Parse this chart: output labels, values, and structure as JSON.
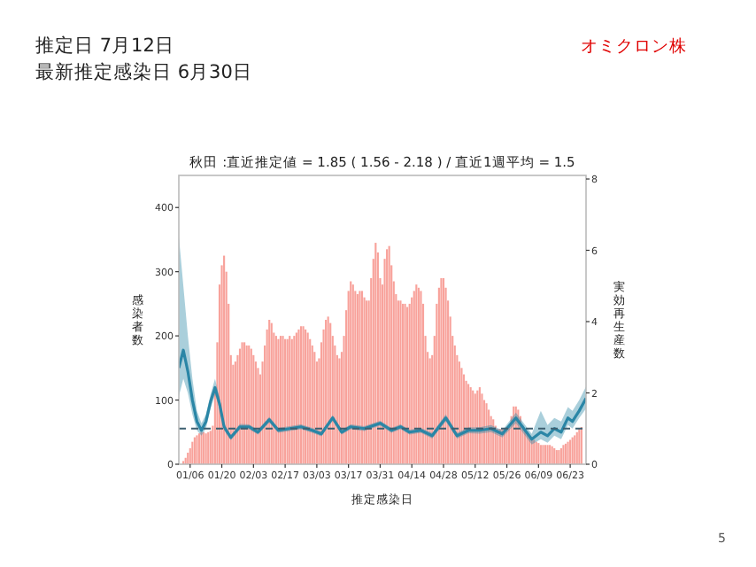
{
  "chart_data": {
    "type": "bar",
    "title": "秋田 :直近推定値 = 1.85 ( 1.56 - 2.18 ) / 直近1週平均 = 1.5",
    "xlabel": "推定感染日",
    "ylabel": "感染者数",
    "y2label": "実効再生産数",
    "annotations": [
      "推定日  7月12日",
      "最新推定感染日  6月30日",
      "オミクロン株",
      "5"
    ],
    "xlim": [
      "--01-01",
      "--06-30"
    ],
    "xticks": [
      {
        "value": "--01-06",
        "label": "01/06"
      },
      {
        "value": "--01-20",
        "label": "01/20"
      },
      {
        "value": "--02-03",
        "label": "02/03"
      },
      {
        "value": "--02-17",
        "label": "02/17"
      },
      {
        "value": "--03-03",
        "label": "03/03"
      },
      {
        "value": "--03-17",
        "label": "03/17"
      },
      {
        "value": "--03-31",
        "label": "03/31"
      },
      {
        "value": "--04-14",
        "label": "04/14"
      },
      {
        "value": "--04-28",
        "label": "04/28"
      },
      {
        "value": "--05-12",
        "label": "05/12"
      },
      {
        "value": "--05-26",
        "label": "05/26"
      },
      {
        "value": "--06-09",
        "label": "06/09"
      },
      {
        "value": "--06-23",
        "label": "06/23"
      }
    ],
    "ylim": [
      0,
      450
    ],
    "yticks": [
      0,
      100,
      200,
      300,
      400
    ],
    "y2lim": [
      0,
      8.1
    ],
    "y2ticks": [
      0,
      2,
      4,
      6,
      8
    ],
    "grid": false,
    "ref_lines": [
      {
        "axis": "y2",
        "value": 1,
        "color": "#3d5f70",
        "line_style": "dashed"
      }
    ],
    "series": [
      {
        "color": "#f8a29b",
        "x": [
          "--01-03",
          "--01-04",
          "--01-05",
          "--01-06",
          "--01-07",
          "--01-08",
          "--01-09",
          "--01-10",
          "--01-11",
          "--01-12",
          "--01-13",
          "--01-14",
          "--01-15",
          "--01-16",
          "--01-17",
          "--01-18",
          "--01-19",
          "--01-20",
          "--01-21",
          "--01-22",
          "--01-23",
          "--01-24",
          "--01-25",
          "--01-26",
          "--01-27",
          "--01-28",
          "--01-29",
          "--01-30",
          "--01-31",
          "--02-01",
          "--02-02",
          "--02-03",
          "--02-04",
          "--02-05",
          "--02-06",
          "--02-07",
          "--02-08",
          "--02-09",
          "--02-10",
          "--02-11",
          "--02-12",
          "--02-13",
          "--02-14",
          "--02-15",
          "--02-16",
          "--02-17",
          "--02-18",
          "--02-19",
          "--02-20",
          "--02-21",
          "--02-22",
          "--02-23",
          "--02-24",
          "--02-25",
          "--02-26",
          "--02-27",
          "--02-28",
          "--03-01",
          "--03-02",
          "--03-03",
          "--03-04",
          "--03-05",
          "--03-06",
          "--03-07",
          "--03-08",
          "--03-09",
          "--03-10",
          "--03-11",
          "--03-12",
          "--03-13",
          "--03-14",
          "--03-15",
          "--03-16",
          "--03-17",
          "--03-18",
          "--03-19",
          "--03-20",
          "--03-21",
          "--03-22",
          "--03-23",
          "--03-24",
          "--03-25",
          "--03-26",
          "--03-27",
          "--03-28",
          "--03-29",
          "--03-30",
          "--03-31",
          "--04-01",
          "--04-02",
          "--04-03",
          "--04-04",
          "--04-05",
          "--04-06",
          "--04-07",
          "--04-08",
          "--04-09",
          "--04-10",
          "--04-11",
          "--04-12",
          "--04-13",
          "--04-14",
          "--04-15",
          "--04-16",
          "--04-17",
          "--04-18",
          "--04-19",
          "--04-20",
          "--04-21",
          "--04-22",
          "--04-23",
          "--04-24",
          "--04-25",
          "--04-26",
          "--04-27",
          "--04-28",
          "--04-29",
          "--04-30",
          "--05-01",
          "--05-02",
          "--05-03",
          "--05-04",
          "--05-05",
          "--05-06",
          "--05-07",
          "--05-08",
          "--05-09",
          "--05-10",
          "--05-11",
          "--05-12",
          "--05-13",
          "--05-14",
          "--05-15",
          "--05-16",
          "--05-17",
          "--05-18",
          "--05-19",
          "--05-20",
          "--05-21",
          "--05-22",
          "--05-23",
          "--05-24",
          "--05-25",
          "--05-26",
          "--05-27",
          "--05-28",
          "--05-29",
          "--05-30",
          "--05-31",
          "--06-01",
          "--06-02",
          "--06-03",
          "--06-04",
          "--06-05",
          "--06-06",
          "--06-07",
          "--06-08",
          "--06-09",
          "--06-10",
          "--06-11",
          "--06-12",
          "--06-13",
          "--06-14",
          "--06-15",
          "--06-16",
          "--06-17",
          "--06-18",
          "--06-19",
          "--06-20",
          "--06-21",
          "--06-22",
          "--06-23",
          "--06-24",
          "--06-25",
          "--06-26",
          "--06-27",
          "--06-28"
        ],
        "values": [
          5,
          10,
          18,
          25,
          35,
          42,
          45,
          48,
          50,
          50,
          48,
          50,
          52,
          60,
          120,
          190,
          280,
          310,
          325,
          300,
          250,
          170,
          155,
          160,
          170,
          180,
          190,
          190,
          185,
          185,
          180,
          170,
          160,
          150,
          140,
          160,
          185,
          210,
          225,
          220,
          205,
          200,
          195,
          200,
          200,
          195,
          195,
          200,
          195,
          200,
          205,
          210,
          215,
          215,
          210,
          205,
          195,
          185,
          175,
          160,
          165,
          190,
          210,
          225,
          230,
          220,
          200,
          185,
          170,
          165,
          175,
          200,
          240,
          270,
          285,
          280,
          270,
          265,
          270,
          270,
          260,
          255,
          255,
          290,
          320,
          345,
          330,
          290,
          280,
          320,
          335,
          340,
          310,
          285,
          265,
          255,
          255,
          250,
          250,
          245,
          250,
          260,
          270,
          280,
          275,
          270,
          250,
          200,
          175,
          165,
          170,
          200,
          250,
          275,
          290,
          290,
          275,
          255,
          230,
          200,
          185,
          170,
          160,
          150,
          140,
          130,
          125,
          120,
          115,
          110,
          115,
          120,
          110,
          100,
          95,
          85,
          75,
          70,
          60,
          55,
          55,
          55,
          55,
          58,
          60,
          75,
          90,
          90,
          85,
          75,
          60,
          55,
          50,
          45,
          42,
          38,
          35,
          33,
          30,
          30,
          30,
          30,
          30,
          28,
          25,
          22,
          22,
          25,
          30,
          32,
          35,
          38,
          42,
          45,
          50,
          55,
          58
        ]
      },
      {
        "type": "line",
        "axis": "y2",
        "color": "#2a86a6",
        "x": [
          "--01-01",
          "--01-03",
          "--01-05",
          "--01-07",
          "--01-09",
          "--01-11",
          "--01-13",
          "--01-15",
          "--01-17",
          "--01-19",
          "--01-21",
          "--01-24",
          "--01-28",
          "--02-01",
          "--02-05",
          "--02-10",
          "--02-14",
          "--02-19",
          "--02-24",
          "--03-01",
          "--03-05",
          "--03-10",
          "--03-14",
          "--03-18",
          "--03-24",
          "--03-31",
          "--04-05",
          "--04-09",
          "--04-13",
          "--04-18",
          "--04-23",
          "--04-29",
          "--05-04",
          "--05-09",
          "--05-14",
          "--05-19",
          "--05-24",
          "--05-30",
          "--06-06",
          "--06-10",
          "--06-13",
          "--06-16",
          "--06-19",
          "--06-22",
          "--06-24",
          "--06-27",
          "--06-30"
        ],
        "values": [
          2.7,
          3.2,
          2.6,
          1.8,
          1.2,
          0.95,
          1.2,
          1.75,
          2.15,
          1.7,
          1.05,
          0.75,
          1.05,
          1.05,
          0.9,
          1.25,
          0.95,
          1.0,
          1.05,
          0.95,
          0.85,
          1.3,
          0.9,
          1.05,
          1.0,
          1.15,
          0.95,
          1.05,
          0.9,
          0.95,
          0.8,
          1.3,
          0.8,
          0.95,
          0.95,
          1.0,
          0.85,
          1.3,
          0.7,
          0.9,
          0.8,
          1.0,
          0.9,
          1.3,
          1.2,
          1.5,
          1.85
        ],
        "lower": [
          1.9,
          2.4,
          2.0,
          1.4,
          0.95,
          0.8,
          1.0,
          1.55,
          1.95,
          1.55,
          0.95,
          0.68,
          0.97,
          0.98,
          0.83,
          1.17,
          0.88,
          0.93,
          0.98,
          0.88,
          0.78,
          1.22,
          0.83,
          0.98,
          0.93,
          1.08,
          0.88,
          0.98,
          0.83,
          0.88,
          0.72,
          1.2,
          0.72,
          0.87,
          0.86,
          0.9,
          0.75,
          1.15,
          0.55,
          0.7,
          0.6,
          0.8,
          0.7,
          1.1,
          1.0,
          1.3,
          1.56
        ],
        "upper": [
          6.4,
          5.0,
          3.6,
          2.4,
          1.5,
          1.15,
          1.4,
          1.95,
          2.4,
          1.85,
          1.15,
          0.82,
          1.13,
          1.12,
          0.97,
          1.33,
          1.02,
          1.07,
          1.12,
          1.02,
          0.92,
          1.38,
          0.97,
          1.12,
          1.07,
          1.22,
          1.02,
          1.12,
          0.97,
          1.02,
          0.88,
          1.4,
          0.88,
          1.03,
          1.04,
          1.1,
          0.95,
          1.45,
          0.85,
          1.5,
          1.1,
          1.3,
          1.2,
          1.6,
          1.5,
          1.8,
          2.18
        ]
      }
    ]
  }
}
